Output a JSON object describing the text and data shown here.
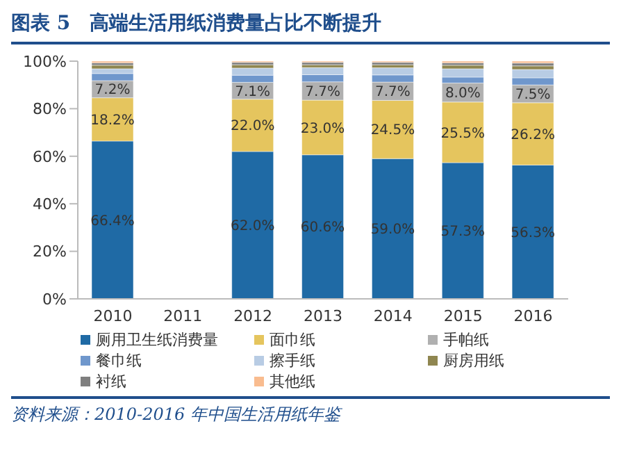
{
  "chart_data": {
    "type": "bar",
    "title": "图表 5　高端生活用纸消费量占比不断提升",
    "stacked": true,
    "categories": [
      "2010",
      "2011",
      "2012",
      "2013",
      "2014",
      "2015",
      "2016"
    ],
    "ylim": [
      0,
      100
    ],
    "yticks": [
      {
        "value": 0,
        "label": "0%"
      },
      {
        "value": 20,
        "label": "20%"
      },
      {
        "value": 40,
        "label": "40%"
      },
      {
        "value": 60,
        "label": "60%"
      },
      {
        "value": 80,
        "label": "80%"
      },
      {
        "value": 100,
        "label": "100%"
      }
    ],
    "grid": false,
    "legend": "bottom",
    "series": [
      {
        "name": "厕用卫生纸消费量",
        "color": "#1f6aa5",
        "values": [
          66.4,
          null,
          62.0,
          60.6,
          59.0,
          57.3,
          56.3
        ],
        "value_labels": [
          "66.4%",
          null,
          "62.0%",
          "60.6%",
          "59.0%",
          "57.3%",
          "56.3%"
        ]
      },
      {
        "name": "面巾纸",
        "color": "#e5c55e",
        "values": [
          18.2,
          null,
          22.0,
          23.0,
          24.5,
          25.5,
          26.2
        ],
        "value_labels": [
          "18.2%",
          null,
          "22.0%",
          "23.0%",
          "24.5%",
          "25.5%",
          "26.2%"
        ]
      },
      {
        "name": "手帕纸",
        "color": "#b0b0b0",
        "values": [
          7.2,
          null,
          7.1,
          7.7,
          7.7,
          8.0,
          7.5
        ],
        "value_labels": [
          "7.2%",
          null,
          "7.1%",
          "7.7%",
          "7.7%",
          "8.0%",
          "7.5%"
        ]
      },
      {
        "name": "餐巾纸",
        "color": "#6f97cc",
        "values": [
          3,
          null,
          3,
          3,
          3,
          2.5,
          3
        ]
      },
      {
        "name": "擦手纸",
        "color": "#b8cce4",
        "values": [
          2,
          null,
          3,
          3,
          3,
          3.5,
          3.5
        ]
      },
      {
        "name": "厨房用纸",
        "color": "#8f8650",
        "values": [
          1.5,
          null,
          1.4,
          1.2,
          1.3,
          1.5,
          1.5
        ]
      },
      {
        "name": "衬纸",
        "color": "#7f7f7f",
        "values": [
          1,
          null,
          1,
          1,
          1,
          1,
          1.2
        ]
      },
      {
        "name": "其他纸",
        "color": "#f9bc8f",
        "values": [
          0.7,
          null,
          0.5,
          0.5,
          0.5,
          0.7,
          0.8
        ]
      }
    ],
    "annotations": [
      "资料来源：2010-2016 年中国生活用纸年鉴"
    ]
  }
}
